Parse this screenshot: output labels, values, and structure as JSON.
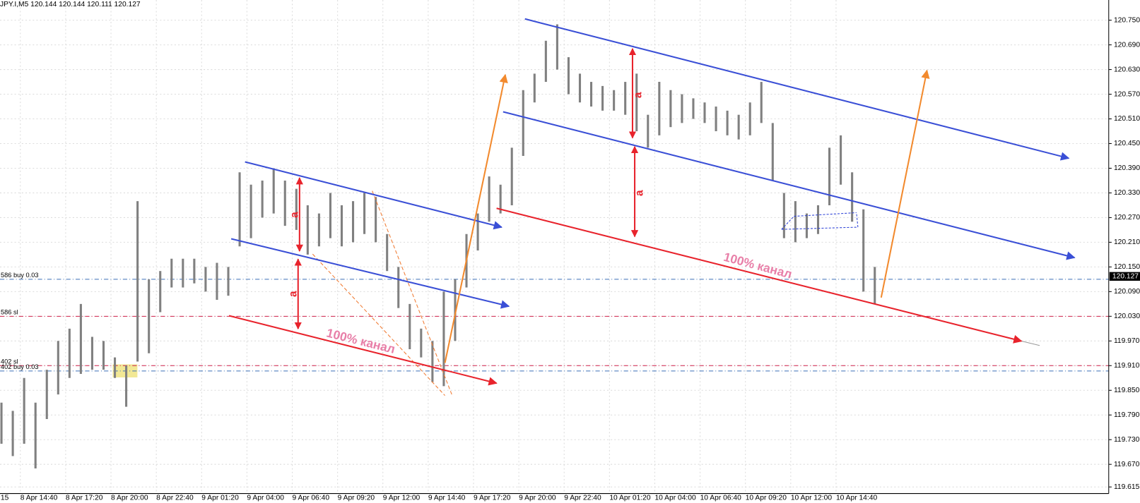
{
  "chart_data": {
    "type": "ohlc",
    "header": "JPY.I,M5  120.144 120.144 120.111 120.127",
    "ylim": [
      119.599,
      120.799
    ],
    "yticks": [
      {
        "value": 120.75,
        "label": "120.750"
      },
      {
        "value": 120.69,
        "label": "120.690"
      },
      {
        "value": 120.63,
        "label": "120.630"
      },
      {
        "value": 120.57,
        "label": "120.570"
      },
      {
        "value": 120.51,
        "label": "120.510"
      },
      {
        "value": 120.45,
        "label": "120.450"
      },
      {
        "value": 120.39,
        "label": "120.390"
      },
      {
        "value": 120.33,
        "label": "120.330"
      },
      {
        "value": 120.27,
        "label": "120.270"
      },
      {
        "value": 120.21,
        "label": "120.210"
      },
      {
        "value": 120.15,
        "label": "120.150"
      },
      {
        "value": 120.09,
        "label": "120.090"
      },
      {
        "value": 120.03,
        "label": "120.030"
      },
      {
        "value": 119.97,
        "label": "119.970"
      },
      {
        "value": 119.91,
        "label": "119.910"
      },
      {
        "value": 119.85,
        "label": "119.850"
      },
      {
        "value": 119.79,
        "label": "119.790"
      },
      {
        "value": 119.73,
        "label": "119.730"
      },
      {
        "value": 119.67,
        "label": "119.670"
      },
      {
        "value": 119.615,
        "label": "119.615"
      }
    ],
    "x_labels": [
      "15",
      "8 Apr 14:40",
      "8 Apr 17:20",
      "8 Apr 20:00",
      "8 Apr 22:40",
      "9 Apr 01:20",
      "9 Apr 04:00",
      "9 Apr 06:40",
      "9 Apr 09:20",
      "9 Apr 12:00",
      "9 Apr 14:40",
      "9 Apr 17:20",
      "9 Apr 20:00",
      "9 Apr 22:40",
      "10 Apr 01:20",
      "10 Apr 04:00",
      "10 Apr 06:40",
      "10 Apr 09:20",
      "10 Apr 12:00",
      "10 Apr 14:40"
    ],
    "grid": true,
    "color": "#808080",
    "high": [
      119.82,
      119.8,
      119.88,
      119.82,
      119.9,
      119.97,
      120.0,
      120.06,
      119.98,
      119.97,
      119.93,
      119.91,
      120.31,
      120.12,
      120.14,
      120.17,
      120.17,
      120.17,
      120.15,
      120.16,
      120.15,
      120.38,
      120.35,
      120.36,
      120.39,
      120.36,
      120.34,
      120.3,
      120.28,
      120.33,
      120.3,
      120.31,
      120.33,
      120.32,
      120.23,
      120.15,
      120.06,
      120.0,
      119.97,
      120.09,
      120.12,
      120.23,
      120.28,
      120.37,
      120.35,
      120.44,
      120.58,
      120.62,
      120.7,
      120.74,
      120.66,
      120.62,
      120.6,
      120.59,
      120.58,
      120.6,
      120.62,
      120.52,
      120.6,
      120.58,
      120.57,
      120.56,
      120.55,
      120.54,
      120.53,
      120.52,
      120.55,
      120.6,
      120.5,
      120.33,
      120.31,
      120.28,
      120.3,
      120.44,
      120.47,
      120.38,
      120.29,
      120.15
    ],
    "low": [
      119.72,
      119.69,
      119.72,
      119.66,
      119.78,
      119.84,
      119.88,
      119.89,
      119.9,
      119.9,
      119.88,
      119.81,
      119.92,
      119.94,
      120.04,
      120.1,
      120.1,
      120.11,
      120.09,
      120.07,
      120.08,
      120.2,
      120.22,
      120.27,
      120.28,
      120.25,
      120.24,
      120.18,
      120.2,
      120.22,
      120.2,
      120.21,
      120.23,
      120.21,
      120.14,
      120.05,
      119.95,
      119.93,
      119.87,
      119.86,
      119.97,
      120.1,
      120.19,
      120.26,
      120.28,
      120.3,
      120.42,
      120.55,
      120.6,
      120.63,
      120.57,
      120.55,
      120.54,
      120.53,
      120.53,
      120.52,
      120.48,
      120.44,
      120.47,
      120.49,
      120.5,
      120.51,
      120.5,
      120.48,
      120.47,
      120.46,
      120.47,
      120.5,
      120.36,
      120.22,
      120.21,
      120.22,
      120.23,
      120.3,
      120.35,
      120.26,
      120.09,
      120.06
    ],
    "levels": [
      {
        "value": 120.12,
        "label": "586 buy 0.03",
        "color": "#3b6fb6"
      },
      {
        "value": 120.03,
        "label": "586 sl",
        "color": "#d0204a"
      },
      {
        "value": 119.91,
        "label": "402 sl",
        "color": "#d0204a"
      },
      {
        "value": 119.897,
        "label": "402 buy 0.03",
        "color": "#3b6fb6"
      }
    ],
    "last": 120.127,
    "channel_labels": [
      "100% канал",
      "100% канал"
    ],
    "a_labels": [
      "a",
      "a",
      "a",
      "a"
    ]
  }
}
